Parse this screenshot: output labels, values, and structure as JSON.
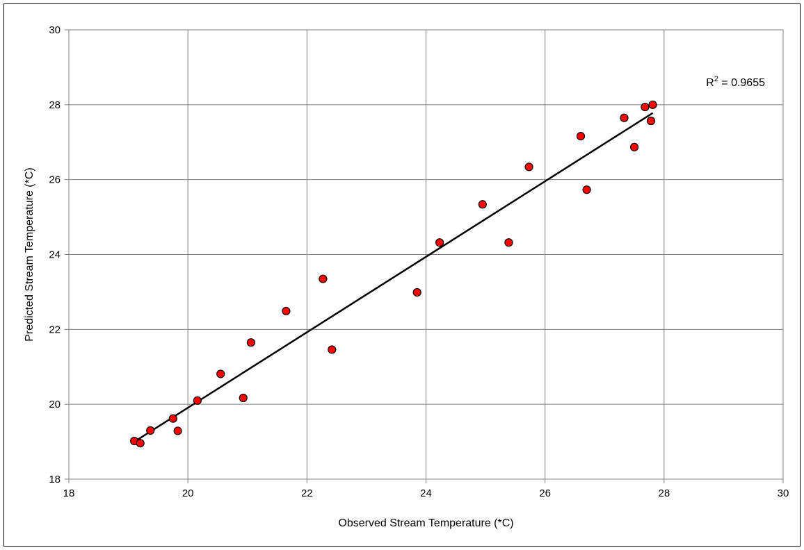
{
  "chart_data": {
    "type": "scatter",
    "title": "",
    "xlabel": "Observed Stream Temperature (*C)",
    "ylabel": "Predicted Stream Temperature (*C)",
    "xlim": [
      18,
      30
    ],
    "ylim": [
      18,
      30
    ],
    "xticks": [
      18,
      20,
      22,
      24,
      26,
      28,
      30
    ],
    "yticks": [
      18,
      20,
      22,
      24,
      26,
      28,
      30
    ],
    "grid": true,
    "point_color": "#ff0000",
    "points": [
      {
        "x": 19.1,
        "y": 19.02
      },
      {
        "x": 19.2,
        "y": 18.96
      },
      {
        "x": 19.37,
        "y": 19.3
      },
      {
        "x": 19.75,
        "y": 19.62
      },
      {
        "x": 19.83,
        "y": 19.29
      },
      {
        "x": 20.16,
        "y": 20.1
      },
      {
        "x": 20.55,
        "y": 20.81
      },
      {
        "x": 20.93,
        "y": 20.17
      },
      {
        "x": 21.06,
        "y": 21.65
      },
      {
        "x": 21.65,
        "y": 22.49
      },
      {
        "x": 22.27,
        "y": 23.35
      },
      {
        "x": 22.42,
        "y": 21.46
      },
      {
        "x": 23.85,
        "y": 22.99
      },
      {
        "x": 24.23,
        "y": 24.32
      },
      {
        "x": 24.95,
        "y": 25.34
      },
      {
        "x": 25.39,
        "y": 24.32
      },
      {
        "x": 25.73,
        "y": 26.34
      },
      {
        "x": 26.6,
        "y": 27.16
      },
      {
        "x": 26.7,
        "y": 25.73
      },
      {
        "x": 27.33,
        "y": 27.65
      },
      {
        "x": 27.5,
        "y": 26.87
      },
      {
        "x": 27.68,
        "y": 27.94
      },
      {
        "x": 27.78,
        "y": 27.57
      },
      {
        "x": 27.81,
        "y": 28.0
      }
    ],
    "trendline": {
      "x": [
        19.1,
        27.81
      ],
      "y": [
        19.0,
        27.78
      ]
    },
    "annotation": {
      "prefix": "R",
      "sup": "2",
      "suffix": " = 0.9655"
    }
  }
}
